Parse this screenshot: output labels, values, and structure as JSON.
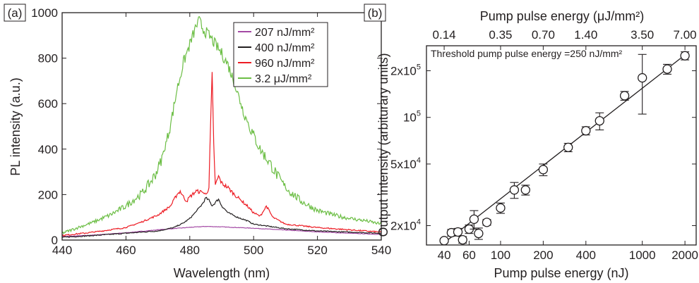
{
  "chart_data": [
    {
      "type": "line",
      "panel_label": "(a)",
      "xlabel": "Wavelength (nm)",
      "ylabel": "PL intensity (a.u.)",
      "xlim": [
        440,
        540
      ],
      "ylim": [
        0,
        1000
      ],
      "xticks": [
        "440",
        "460",
        "480",
        "500",
        "520",
        "540"
      ],
      "yticks": [
        "0",
        "200",
        "400",
        "600",
        "800",
        "1000"
      ],
      "legend_position": "top-right",
      "series": [
        {
          "name": "207 nJ/mm²",
          "color": "#a349a4",
          "x": [
            440,
            450,
            460,
            470,
            480,
            485,
            490,
            500,
            510,
            520,
            530,
            540
          ],
          "y": [
            15,
            22,
            32,
            45,
            56,
            60,
            58,
            52,
            44,
            36,
            30,
            25
          ]
        },
        {
          "name": "400 nJ/mm²",
          "color": "#231f20",
          "x": [
            440,
            450,
            460,
            470,
            475,
            478,
            480,
            482,
            484,
            485,
            486,
            487,
            488,
            489,
            490,
            492,
            495,
            498,
            500,
            505,
            510,
            520,
            530,
            540
          ],
          "y": [
            12,
            20,
            30,
            40,
            55,
            75,
            95,
            125,
            160,
            185,
            175,
            150,
            165,
            180,
            150,
            120,
            100,
            85,
            70,
            60,
            50,
            40,
            35,
            30
          ]
        },
        {
          "name": "960 nJ/mm²",
          "color": "#ed1c24",
          "x": [
            440,
            450,
            460,
            465,
            470,
            474,
            476,
            477,
            478,
            479,
            480,
            482,
            484,
            485,
            486,
            486.5,
            487,
            487.5,
            488,
            489,
            490,
            492,
            494,
            496,
            498,
            500,
            502,
            503,
            504,
            505,
            506,
            508,
            510,
            520,
            530,
            540
          ],
          "y": [
            20,
            35,
            55,
            80,
            110,
            150,
            200,
            215,
            190,
            170,
            190,
            215,
            210,
            200,
            230,
            500,
            730,
            420,
            240,
            280,
            250,
            230,
            200,
            175,
            150,
            120,
            105,
            125,
            150,
            125,
            100,
            85,
            70,
            55,
            45,
            35
          ]
        },
        {
          "name": "3.2 μJ/mm²",
          "color": "#6cbe45",
          "x": [
            440,
            445,
            450,
            455,
            460,
            465,
            468,
            470,
            472,
            474,
            476,
            478,
            480,
            482,
            483,
            484,
            486,
            488,
            490,
            492,
            494,
            496,
            498,
            500,
            502,
            505,
            508,
            510,
            515,
            520,
            525,
            530,
            535,
            540
          ],
          "y": [
            30,
            55,
            80,
            110,
            150,
            205,
            260,
            310,
            390,
            510,
            660,
            780,
            860,
            940,
            965,
            930,
            900,
            860,
            820,
            770,
            690,
            600,
            520,
            460,
            400,
            340,
            270,
            230,
            170,
            130,
            110,
            95,
            85,
            70
          ]
        }
      ]
    },
    {
      "type": "scatter",
      "panel_label": "(b)",
      "xlabel": "Pump pulse energy (nJ)",
      "ylabel": "Output intensity (arbiturary units)",
      "top_xlabel": "Pump pulse energy (μJ/mm²)",
      "x_scale": "log",
      "y_scale": "log",
      "xlim": [
        30,
        2400
      ],
      "ylim": [
        15000,
        290000
      ],
      "xticks": [
        {
          "value": 40,
          "label": "40"
        },
        {
          "value": 60,
          "label": "60"
        },
        {
          "value": 100,
          "label": "100"
        },
        {
          "value": 200,
          "label": "200"
        },
        {
          "value": 400,
          "label": "400"
        },
        {
          "value": 1000,
          "label": "1000"
        },
        {
          "value": 2000,
          "label": "2000"
        }
      ],
      "top_xticks": [
        {
          "value": 40,
          "label": "0.14"
        },
        {
          "value": 100,
          "label": "0.35"
        },
        {
          "value": 200,
          "label": "0.70"
        },
        {
          "value": 400,
          "label": "1.40"
        },
        {
          "value": 1000,
          "label": "3.50"
        },
        {
          "value": 2000,
          "label": "7.00"
        }
      ],
      "yticks": [
        {
          "value": 20000,
          "label": "2x10",
          "exp": "4"
        },
        {
          "value": 50000,
          "label": "5x10",
          "exp": "4"
        },
        {
          "value": 100000,
          "label": "10",
          "exp": "5"
        },
        {
          "value": 200000,
          "label": "2x10",
          "exp": "5"
        }
      ],
      "annotation": "Threshold pump pulse energy =250 nJ/mm²",
      "points": [
        {
          "x": 40,
          "y": 16000,
          "err": 500
        },
        {
          "x": 45,
          "y": 18000,
          "err": 900
        },
        {
          "x": 50,
          "y": 18200,
          "err": 1000
        },
        {
          "x": 54,
          "y": 16200,
          "err": 800
        },
        {
          "x": 60,
          "y": 19000,
          "err": 1200
        },
        {
          "x": 65,
          "y": 22000,
          "err": 3000
        },
        {
          "x": 70,
          "y": 17800,
          "err": 1500
        },
        {
          "x": 80,
          "y": 21000,
          "err": 900
        },
        {
          "x": 100,
          "y": 26000,
          "err": 2000
        },
        {
          "x": 125,
          "y": 34000,
          "err": 4000
        },
        {
          "x": 150,
          "y": 34000,
          "err": 2500
        },
        {
          "x": 200,
          "y": 46000,
          "err": 4000
        },
        {
          "x": 300,
          "y": 64000,
          "err": 4000
        },
        {
          "x": 400,
          "y": 82000,
          "err": 5000
        },
        {
          "x": 500,
          "y": 95000,
          "err": 12000
        },
        {
          "x": 750,
          "y": 138000,
          "err": 9000
        },
        {
          "x": 1000,
          "y": 180000,
          "err": 75000
        },
        {
          "x": 1500,
          "y": 205000,
          "err": 15000
        },
        {
          "x": 2000,
          "y": 250000,
          "err": 15000
        }
      ],
      "fit_line": {
        "x": [
          40,
          2000
        ],
        "y": [
          15500,
          253000
        ]
      }
    }
  ]
}
